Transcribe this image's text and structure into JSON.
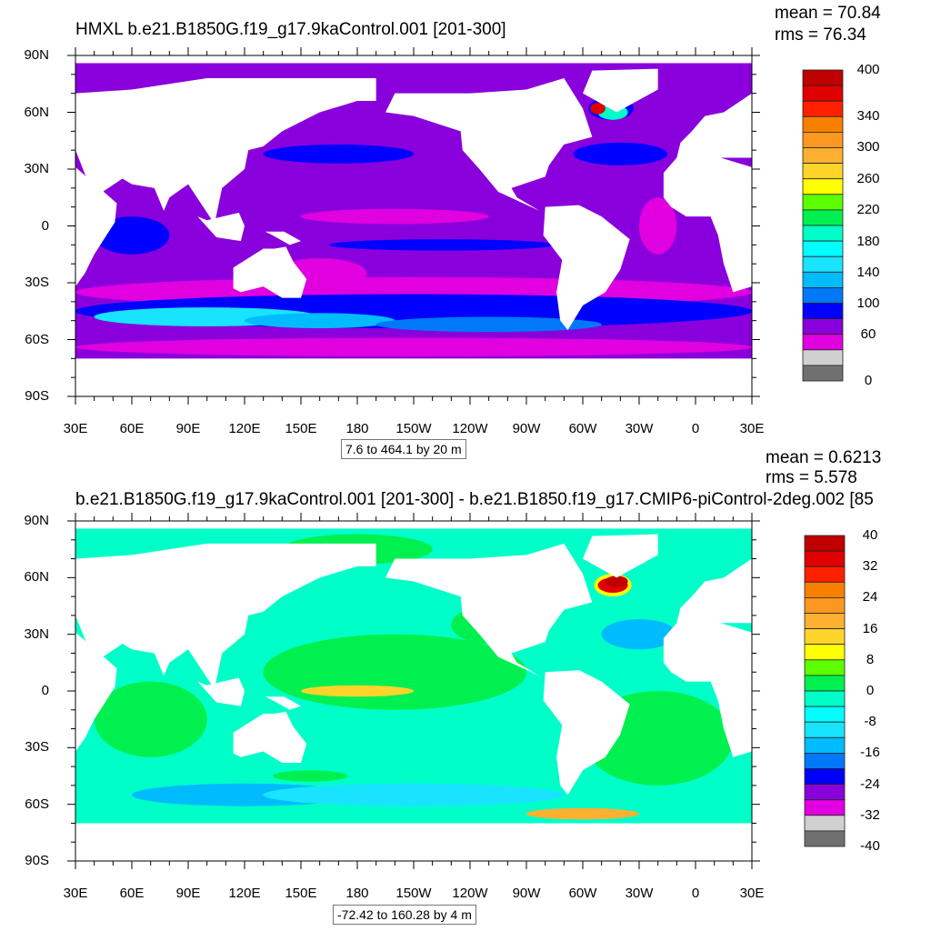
{
  "panels": [
    {
      "title": "HMXL b.e21.B1850G.f19_g17.9kaControl.001 [201-300]",
      "mean": "mean = 70.84",
      "rms": "rms = 76.34",
      "range_label": "7.6 to 464.1 by 20 m",
      "colorbar": {
        "labels": [
          "400",
          "340",
          "300",
          "260",
          "220",
          "180",
          "140",
          "100",
          "60",
          "0"
        ],
        "colors": [
          "#c00000",
          "#e00000",
          "#ff2000",
          "#f88000",
          "#fc9820",
          "#ffb030",
          "#ffd42a",
          "#ffff00",
          "#5cff00",
          "#00f050",
          "#00ffc8",
          "#00ffff",
          "#18e4ff",
          "#00bcff",
          "#0078f8",
          "#0000ff",
          "#8a00dc",
          "#e000e0",
          "#d0d0d0",
          "#707070"
        ]
      }
    },
    {
      "title": "b.e21.B1850G.f19_g17.9kaControl.001 [201-300] - b.e21.B1850.f19_g17.CMIP6-piControl-2deg.002 [85",
      "mean": "mean = 0.6213",
      "rms": "rms = 5.578",
      "range_label": "-72.42 to 160.28 by 4 m",
      "colorbar": {
        "labels": [
          "40",
          "32",
          "24",
          "16",
          "8",
          "0",
          "-8",
          "-16",
          "-24",
          "-32",
          "-40"
        ],
        "colors": [
          "#c00000",
          "#e00000",
          "#ff2000",
          "#f88000",
          "#fc9820",
          "#ffb030",
          "#ffd42a",
          "#ffff00",
          "#5cff00",
          "#00f050",
          "#00ffc8",
          "#00ffff",
          "#18e4ff",
          "#00bcff",
          "#0078f8",
          "#0000ff",
          "#8a00dc",
          "#e000e0",
          "#d0d0d0",
          "#707070"
        ]
      }
    }
  ],
  "axes": {
    "lon_labels": [
      "30E",
      "60E",
      "90E",
      "120E",
      "150E",
      "180",
      "150W",
      "120W",
      "90W",
      "60W",
      "30W",
      "0",
      "30E"
    ],
    "lat_labels": [
      "90N",
      "60N",
      "30N",
      "0",
      "30S",
      "60S",
      "90S"
    ]
  }
}
